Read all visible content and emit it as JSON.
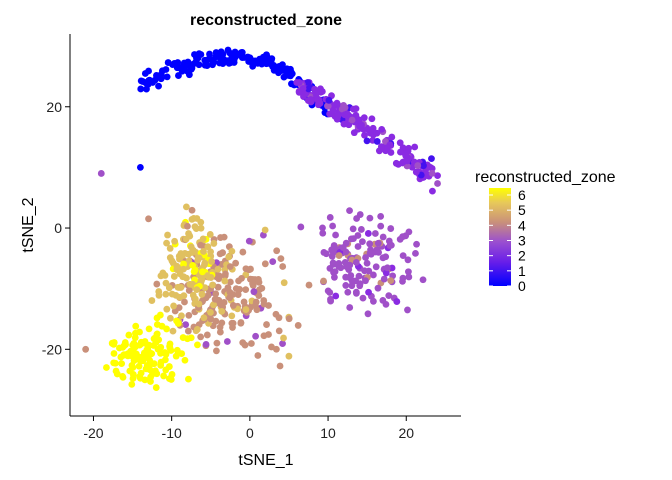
{
  "chart_data": {
    "type": "scatter",
    "title": "reconstructed_zone",
    "xlabel": "tSNE_1",
    "ylabel": "tSNE_2",
    "xlim": [
      -23,
      27
    ],
    "ylim": [
      -31,
      32
    ],
    "xticks": [
      -20,
      -10,
      0,
      10,
      20
    ],
    "yticks": [
      -20,
      0,
      20
    ],
    "grid": false,
    "legend": {
      "title": "reconstructed_zone",
      "position": "right",
      "type": "colorbar",
      "range": [
        0,
        6
      ],
      "ticks": [
        "6",
        "5",
        "4",
        "3",
        "2",
        "1",
        "0"
      ]
    },
    "colors": {
      "0": "#0000ff",
      "1": "#4411f0",
      "2": "#8a2be2",
      "3": "#a050c8",
      "4": "#c9907a",
      "5": "#e0c060",
      "6": "#ffff00"
    },
    "clusters": [
      {
        "zone": 0,
        "x_range": [
          -14,
          10
        ],
        "y_range": [
          18,
          31
        ],
        "count": 170,
        "shape": "arc"
      },
      {
        "zone": 2,
        "x_range": [
          6,
          24
        ],
        "y_range": [
          4,
          24
        ],
        "count": 180,
        "shape": "band"
      },
      {
        "zone": 3,
        "x_range": [
          5,
          24
        ],
        "y_range": [
          -17,
          5
        ],
        "count": 150,
        "shape": "blob"
      },
      {
        "zone": 4,
        "x_range": [
          -13,
          8
        ],
        "y_range": [
          -25,
          2
        ],
        "count": 200,
        "shape": "blob"
      },
      {
        "zone": 5,
        "x_range": [
          -14,
          -1
        ],
        "y_range": [
          -18,
          6
        ],
        "count": 150,
        "shape": "blob"
      },
      {
        "zone": 6,
        "x_range": [
          -20,
          -6
        ],
        "y_range": [
          -28,
          -13
        ],
        "count": 130,
        "shape": "blob"
      }
    ],
    "outliers": [
      {
        "x": -19,
        "y": 9,
        "zone": 3
      },
      {
        "x": -21,
        "y": -20,
        "zone": 4
      },
      {
        "x": -14,
        "y": 10,
        "zone": 0
      }
    ]
  }
}
